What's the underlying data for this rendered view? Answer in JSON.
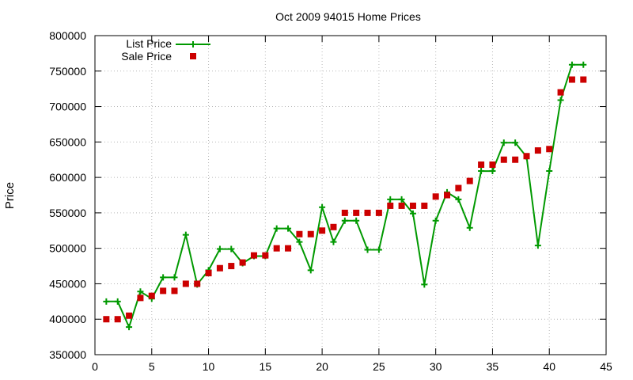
{
  "chart_data": {
    "type": "line",
    "title": "Oct 2009 94015 Home Prices",
    "xlabel": "",
    "ylabel": "Price",
    "xlim": [
      0,
      45
    ],
    "ylim": [
      350000,
      800000
    ],
    "x_ticks": [
      0,
      5,
      10,
      15,
      20,
      25,
      30,
      35,
      40,
      45
    ],
    "y_ticks": [
      350000,
      400000,
      450000,
      500000,
      550000,
      600000,
      650000,
      700000,
      750000,
      800000
    ],
    "grid": true,
    "legend_position": "top-left",
    "series": [
      {
        "name": "List Price",
        "style": "line-with-plus-markers",
        "color": "#009900",
        "x": [
          1,
          2,
          3,
          4,
          5,
          6,
          7,
          8,
          9,
          10,
          11,
          12,
          13,
          14,
          15,
          16,
          17,
          18,
          19,
          20,
          21,
          22,
          23,
          24,
          25,
          26,
          27,
          28,
          29,
          30,
          31,
          32,
          33,
          34,
          35,
          36,
          37,
          38,
          39,
          40,
          41,
          42,
          43
        ],
        "values": [
          425000,
          425000,
          389000,
          439000,
          429000,
          459000,
          459000,
          519000,
          449000,
          469000,
          499000,
          499000,
          479000,
          489000,
          489000,
          528000,
          528000,
          509000,
          469000,
          558000,
          509000,
          539000,
          539000,
          498000,
          498000,
          569000,
          569000,
          549000,
          449000,
          539000,
          579000,
          569000,
          529000,
          609000,
          609000,
          649000,
          649000,
          629000,
          504000,
          609000,
          709000,
          759000,
          759000
        ]
      },
      {
        "name": "Sale Price",
        "style": "points-square",
        "color": "#cc0000",
        "x": [
          1,
          2,
          3,
          4,
          5,
          6,
          7,
          8,
          9,
          10,
          11,
          12,
          13,
          14,
          15,
          16,
          17,
          18,
          19,
          20,
          21,
          22,
          23,
          24,
          25,
          26,
          27,
          28,
          29,
          30,
          31,
          32,
          33,
          34,
          35,
          36,
          37,
          38,
          39,
          40,
          41,
          42,
          43
        ],
        "values": [
          400000,
          400000,
          405000,
          430000,
          433000,
          440000,
          440000,
          450000,
          450000,
          465000,
          472000,
          475000,
          480000,
          490000,
          490000,
          500000,
          500000,
          520000,
          520000,
          525000,
          530000,
          550000,
          550000,
          550000,
          550000,
          560000,
          560000,
          560000,
          560000,
          573000,
          575000,
          585000,
          595000,
          618000,
          618000,
          625000,
          625000,
          630000,
          638000,
          640000,
          720000,
          738000,
          738000
        ]
      }
    ]
  }
}
